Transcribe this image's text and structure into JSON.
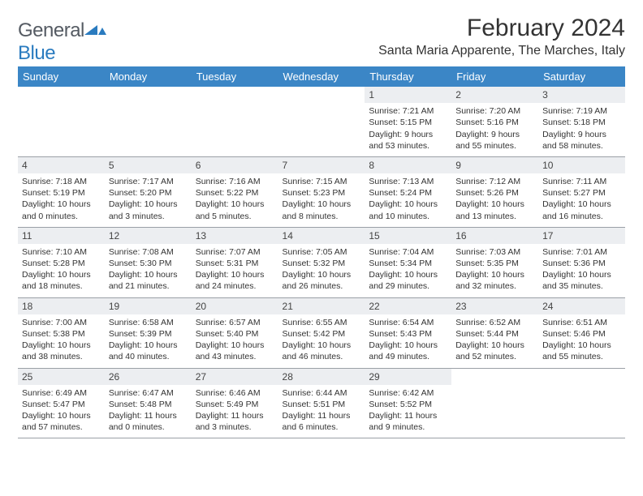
{
  "logo": {
    "word1": "General",
    "word2": "Blue",
    "mark_color": "#2a7bbf",
    "text_color": "#555b63"
  },
  "title": "February 2024",
  "subtitle": "Santa Maria Apparente, The Marches, Italy",
  "colors": {
    "header_bg": "#3b86c6",
    "header_fg": "#ffffff",
    "daynum_bg": "#eceef1",
    "rule": "#9aa0a6",
    "text": "#333333"
  },
  "weekdays": [
    "Sunday",
    "Monday",
    "Tuesday",
    "Wednesday",
    "Thursday",
    "Friday",
    "Saturday"
  ],
  "weeks": [
    [
      {
        "n": "",
        "sunrise": "",
        "sunset": "",
        "daylight1": "",
        "daylight2": ""
      },
      {
        "n": "",
        "sunrise": "",
        "sunset": "",
        "daylight1": "",
        "daylight2": ""
      },
      {
        "n": "",
        "sunrise": "",
        "sunset": "",
        "daylight1": "",
        "daylight2": ""
      },
      {
        "n": "",
        "sunrise": "",
        "sunset": "",
        "daylight1": "",
        "daylight2": ""
      },
      {
        "n": "1",
        "sunrise": "Sunrise: 7:21 AM",
        "sunset": "Sunset: 5:15 PM",
        "daylight1": "Daylight: 9 hours",
        "daylight2": "and 53 minutes."
      },
      {
        "n": "2",
        "sunrise": "Sunrise: 7:20 AM",
        "sunset": "Sunset: 5:16 PM",
        "daylight1": "Daylight: 9 hours",
        "daylight2": "and 55 minutes."
      },
      {
        "n": "3",
        "sunrise": "Sunrise: 7:19 AM",
        "sunset": "Sunset: 5:18 PM",
        "daylight1": "Daylight: 9 hours",
        "daylight2": "and 58 minutes."
      }
    ],
    [
      {
        "n": "4",
        "sunrise": "Sunrise: 7:18 AM",
        "sunset": "Sunset: 5:19 PM",
        "daylight1": "Daylight: 10 hours",
        "daylight2": "and 0 minutes."
      },
      {
        "n": "5",
        "sunrise": "Sunrise: 7:17 AM",
        "sunset": "Sunset: 5:20 PM",
        "daylight1": "Daylight: 10 hours",
        "daylight2": "and 3 minutes."
      },
      {
        "n": "6",
        "sunrise": "Sunrise: 7:16 AM",
        "sunset": "Sunset: 5:22 PM",
        "daylight1": "Daylight: 10 hours",
        "daylight2": "and 5 minutes."
      },
      {
        "n": "7",
        "sunrise": "Sunrise: 7:15 AM",
        "sunset": "Sunset: 5:23 PM",
        "daylight1": "Daylight: 10 hours",
        "daylight2": "and 8 minutes."
      },
      {
        "n": "8",
        "sunrise": "Sunrise: 7:13 AM",
        "sunset": "Sunset: 5:24 PM",
        "daylight1": "Daylight: 10 hours",
        "daylight2": "and 10 minutes."
      },
      {
        "n": "9",
        "sunrise": "Sunrise: 7:12 AM",
        "sunset": "Sunset: 5:26 PM",
        "daylight1": "Daylight: 10 hours",
        "daylight2": "and 13 minutes."
      },
      {
        "n": "10",
        "sunrise": "Sunrise: 7:11 AM",
        "sunset": "Sunset: 5:27 PM",
        "daylight1": "Daylight: 10 hours",
        "daylight2": "and 16 minutes."
      }
    ],
    [
      {
        "n": "11",
        "sunrise": "Sunrise: 7:10 AM",
        "sunset": "Sunset: 5:28 PM",
        "daylight1": "Daylight: 10 hours",
        "daylight2": "and 18 minutes."
      },
      {
        "n": "12",
        "sunrise": "Sunrise: 7:08 AM",
        "sunset": "Sunset: 5:30 PM",
        "daylight1": "Daylight: 10 hours",
        "daylight2": "and 21 minutes."
      },
      {
        "n": "13",
        "sunrise": "Sunrise: 7:07 AM",
        "sunset": "Sunset: 5:31 PM",
        "daylight1": "Daylight: 10 hours",
        "daylight2": "and 24 minutes."
      },
      {
        "n": "14",
        "sunrise": "Sunrise: 7:05 AM",
        "sunset": "Sunset: 5:32 PM",
        "daylight1": "Daylight: 10 hours",
        "daylight2": "and 26 minutes."
      },
      {
        "n": "15",
        "sunrise": "Sunrise: 7:04 AM",
        "sunset": "Sunset: 5:34 PM",
        "daylight1": "Daylight: 10 hours",
        "daylight2": "and 29 minutes."
      },
      {
        "n": "16",
        "sunrise": "Sunrise: 7:03 AM",
        "sunset": "Sunset: 5:35 PM",
        "daylight1": "Daylight: 10 hours",
        "daylight2": "and 32 minutes."
      },
      {
        "n": "17",
        "sunrise": "Sunrise: 7:01 AM",
        "sunset": "Sunset: 5:36 PM",
        "daylight1": "Daylight: 10 hours",
        "daylight2": "and 35 minutes."
      }
    ],
    [
      {
        "n": "18",
        "sunrise": "Sunrise: 7:00 AM",
        "sunset": "Sunset: 5:38 PM",
        "daylight1": "Daylight: 10 hours",
        "daylight2": "and 38 minutes."
      },
      {
        "n": "19",
        "sunrise": "Sunrise: 6:58 AM",
        "sunset": "Sunset: 5:39 PM",
        "daylight1": "Daylight: 10 hours",
        "daylight2": "and 40 minutes."
      },
      {
        "n": "20",
        "sunrise": "Sunrise: 6:57 AM",
        "sunset": "Sunset: 5:40 PM",
        "daylight1": "Daylight: 10 hours",
        "daylight2": "and 43 minutes."
      },
      {
        "n": "21",
        "sunrise": "Sunrise: 6:55 AM",
        "sunset": "Sunset: 5:42 PM",
        "daylight1": "Daylight: 10 hours",
        "daylight2": "and 46 minutes."
      },
      {
        "n": "22",
        "sunrise": "Sunrise: 6:54 AM",
        "sunset": "Sunset: 5:43 PM",
        "daylight1": "Daylight: 10 hours",
        "daylight2": "and 49 minutes."
      },
      {
        "n": "23",
        "sunrise": "Sunrise: 6:52 AM",
        "sunset": "Sunset: 5:44 PM",
        "daylight1": "Daylight: 10 hours",
        "daylight2": "and 52 minutes."
      },
      {
        "n": "24",
        "sunrise": "Sunrise: 6:51 AM",
        "sunset": "Sunset: 5:46 PM",
        "daylight1": "Daylight: 10 hours",
        "daylight2": "and 55 minutes."
      }
    ],
    [
      {
        "n": "25",
        "sunrise": "Sunrise: 6:49 AM",
        "sunset": "Sunset: 5:47 PM",
        "daylight1": "Daylight: 10 hours",
        "daylight2": "and 57 minutes."
      },
      {
        "n": "26",
        "sunrise": "Sunrise: 6:47 AM",
        "sunset": "Sunset: 5:48 PM",
        "daylight1": "Daylight: 11 hours",
        "daylight2": "and 0 minutes."
      },
      {
        "n": "27",
        "sunrise": "Sunrise: 6:46 AM",
        "sunset": "Sunset: 5:49 PM",
        "daylight1": "Daylight: 11 hours",
        "daylight2": "and 3 minutes."
      },
      {
        "n": "28",
        "sunrise": "Sunrise: 6:44 AM",
        "sunset": "Sunset: 5:51 PM",
        "daylight1": "Daylight: 11 hours",
        "daylight2": "and 6 minutes."
      },
      {
        "n": "29",
        "sunrise": "Sunrise: 6:42 AM",
        "sunset": "Sunset: 5:52 PM",
        "daylight1": "Daylight: 11 hours",
        "daylight2": "and 9 minutes."
      },
      {
        "n": "",
        "sunrise": "",
        "sunset": "",
        "daylight1": "",
        "daylight2": ""
      },
      {
        "n": "",
        "sunrise": "",
        "sunset": "",
        "daylight1": "",
        "daylight2": ""
      }
    ]
  ]
}
